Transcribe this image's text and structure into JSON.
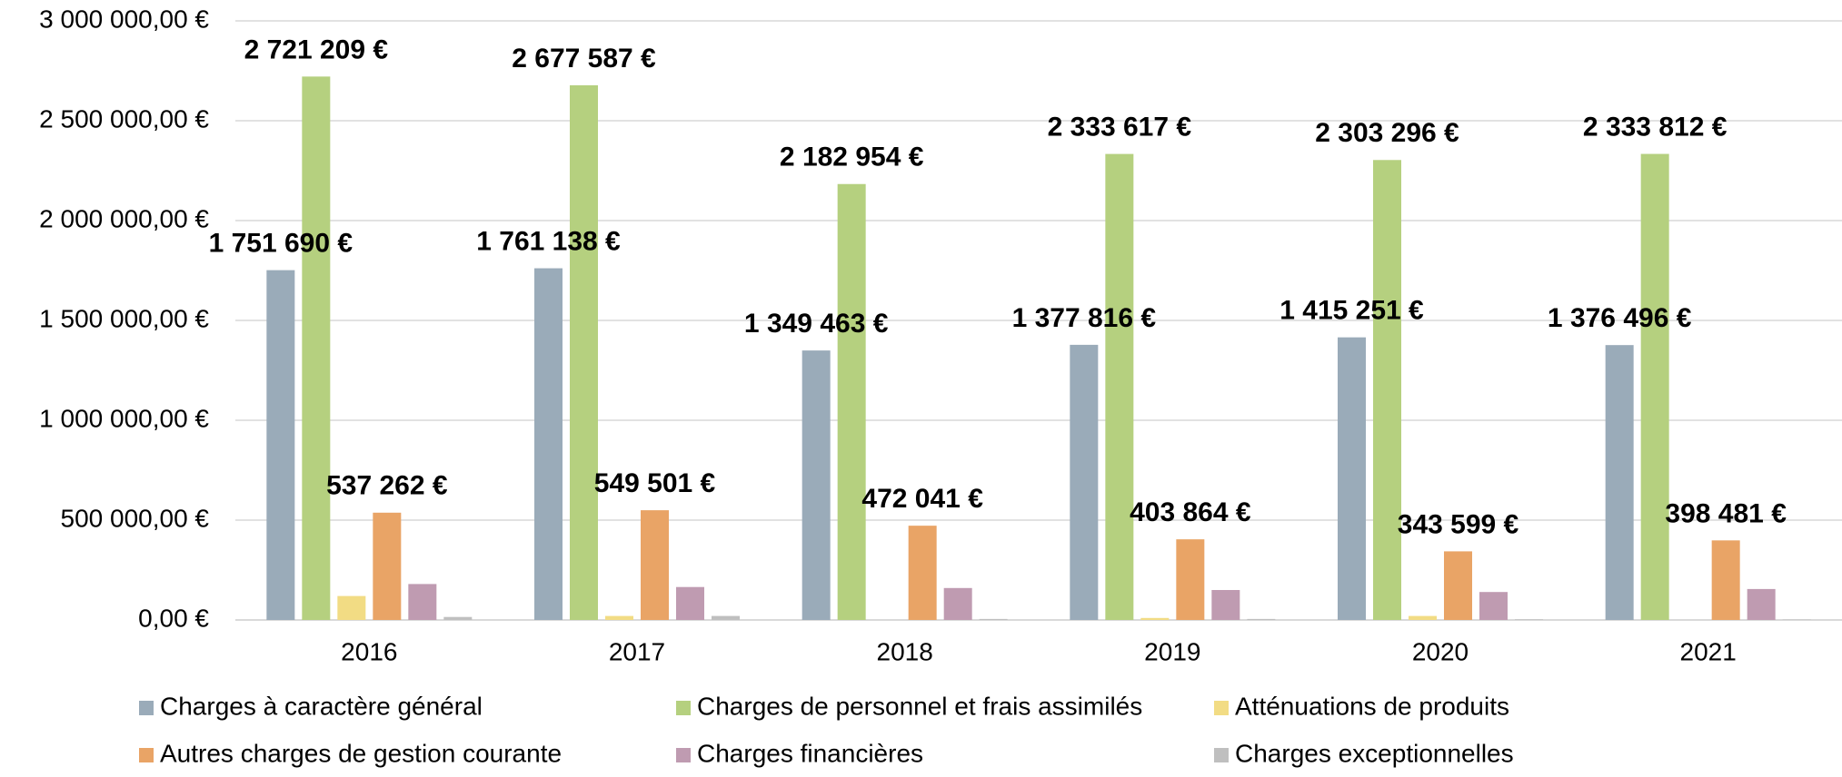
{
  "chart_data": {
    "type": "bar",
    "categories": [
      "2016",
      "2017",
      "2018",
      "2019",
      "2020",
      "2021"
    ],
    "series": [
      {
        "name": "Charges à caractère général",
        "color": "#9aabb9",
        "values": [
          1751690,
          1761138,
          1349463,
          1377816,
          1415251,
          1376496
        ],
        "value_labels": [
          "1 751 690 €",
          "1 761 138 €",
          "1 349 463 €",
          "1 377 816 €",
          "1 415 251 €",
          "1 376 496 €"
        ]
      },
      {
        "name": "Charges de personnel et frais assimilés",
        "color": "#b5d07f",
        "values": [
          2721209,
          2677587,
          2182954,
          2333617,
          2303296,
          2333812
        ],
        "value_labels": [
          "2 721 209 €",
          "2 677 587 €",
          "2 182 954 €",
          "2 333 617 €",
          "2 303 296 €",
          "2 333 812 €"
        ]
      },
      {
        "name": "Atténuations de produits",
        "color": "#f2dc84",
        "values": [
          120000,
          20000,
          0,
          10000,
          20000,
          0
        ]
      },
      {
        "name": "Autres charges de gestion courante",
        "color": "#e9a466",
        "values": [
          537262,
          549501,
          472041,
          403864,
          343599,
          398481
        ],
        "value_labels": [
          "537 262 €",
          "549 501 €",
          "472 041 €",
          "403 864 €",
          "343 599 €",
          "398 481 €"
        ]
      },
      {
        "name": "Charges financières",
        "color": "#bf9bb1",
        "values": [
          180000,
          165000,
          160000,
          150000,
          140000,
          155000
        ]
      },
      {
        "name": "Charges exceptionnelles",
        "color": "#bfbfbf",
        "values": [
          15000,
          20000,
          5000,
          5000,
          3000,
          2000
        ]
      }
    ],
    "ylim": [
      0,
      3000000
    ],
    "yticks": [
      {
        "value": 0,
        "label": "0,00 €"
      },
      {
        "value": 500000,
        "label": "500 000,00 €"
      },
      {
        "value": 1000000,
        "label": "1 000 000,00 €"
      },
      {
        "value": 1500000,
        "label": "1 500 000,00 €"
      },
      {
        "value": 2000000,
        "label": "2 000 000,00 €"
      },
      {
        "value": 2500000,
        "label": "2 500 000,00 €"
      },
      {
        "value": 3000000,
        "label": "3 000 000,00 €"
      }
    ],
    "grid": true,
    "legend": "bottom"
  }
}
